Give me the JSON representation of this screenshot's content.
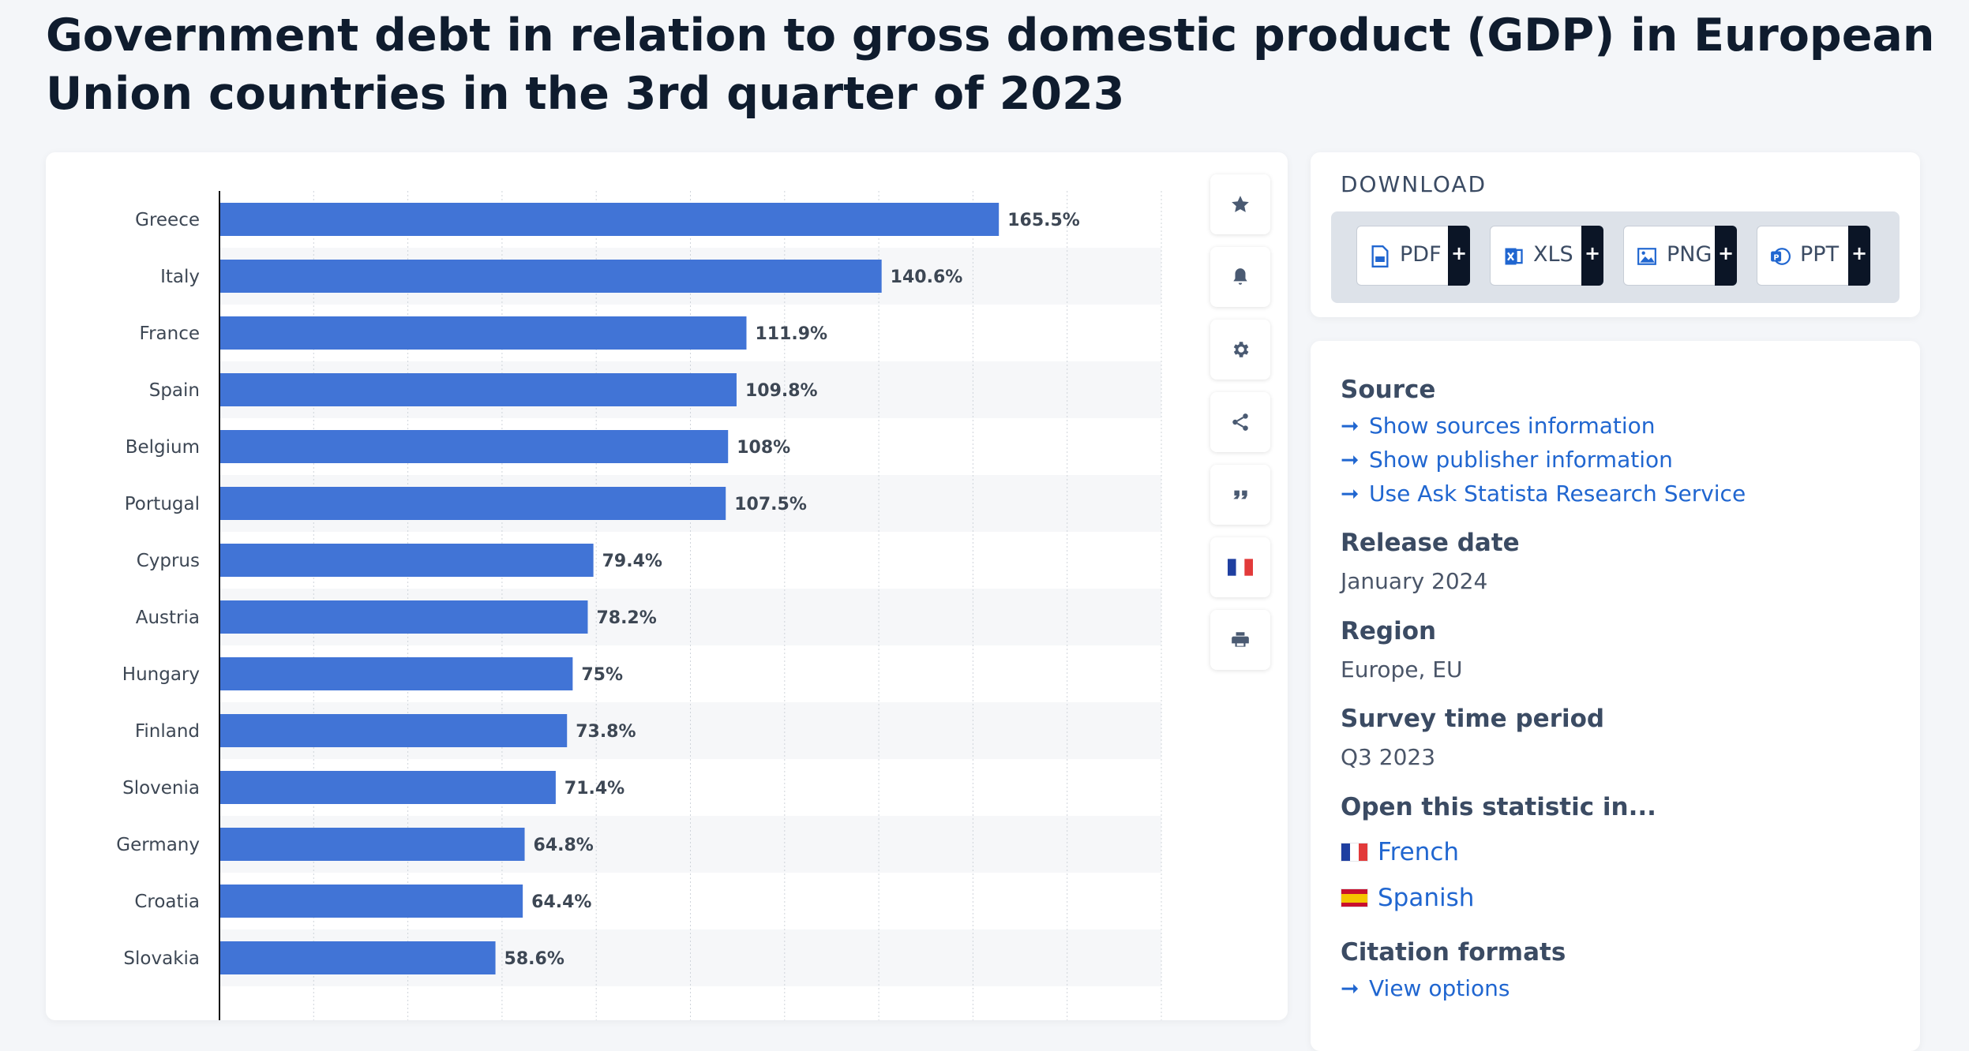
{
  "page": {
    "title": "Government debt in relation to gross domestic product (GDP) in European Union countries in the 3rd quarter of 2023"
  },
  "chart_data": {
    "type": "bar",
    "orientation": "horizontal",
    "title": "Government debt in relation to gross domestic product (GDP) in European Union countries in the 3rd quarter of 2023",
    "xlabel": "",
    "ylabel": "",
    "xlim": [
      0,
      200
    ],
    "grid": true,
    "categories": [
      "Greece",
      "Italy",
      "France",
      "Spain",
      "Belgium",
      "Portugal",
      "Cyprus",
      "Austria",
      "Hungary",
      "Finland",
      "Slovenia",
      "Germany",
      "Croatia",
      "Slovakia"
    ],
    "values": [
      165.5,
      140.6,
      111.9,
      109.8,
      108,
      107.5,
      79.4,
      78.2,
      75,
      73.8,
      71.4,
      64.8,
      64.4,
      58.6
    ],
    "labels": [
      "165.5%",
      "140.6%",
      "111.9%",
      "109.8%",
      "108%",
      "107.5%",
      "79.4%",
      "78.2%",
      "75%",
      "73.8%",
      "71.4%",
      "64.8%",
      "64.4%",
      "58.6%"
    ],
    "unit": "%",
    "bar_color": "#4174d6"
  },
  "toolbar": {
    "items": [
      {
        "name": "favorite",
        "icon": "star-icon"
      },
      {
        "name": "notification",
        "icon": "bell-icon"
      },
      {
        "name": "settings",
        "icon": "gear-icon"
      },
      {
        "name": "share",
        "icon": "share-icon"
      },
      {
        "name": "cite",
        "icon": "quote-icon"
      },
      {
        "name": "language",
        "icon": "french-flag-icon"
      },
      {
        "name": "print",
        "icon": "print-icon"
      }
    ]
  },
  "download": {
    "heading": "DOWNLOAD",
    "buttons": [
      {
        "label": "PDF",
        "plus": "+",
        "icon": "pdf-file-icon"
      },
      {
        "label": "XLS",
        "plus": "+",
        "icon": "xls-file-icon"
      },
      {
        "label": "PNG",
        "plus": "+",
        "icon": "png-image-icon"
      },
      {
        "label": "PPT",
        "plus": "+",
        "icon": "ppt-file-icon"
      }
    ]
  },
  "info": {
    "source_heading": "Source",
    "source_links": [
      "Show sources information",
      "Show publisher information",
      "Use Ask Statista Research Service"
    ],
    "link_arrow": "➞",
    "release_heading": "Release date",
    "release_value": "January 2024",
    "region_heading": "Region",
    "region_value": "Europe, EU",
    "survey_heading": "Survey time period",
    "survey_value": "Q3 2023",
    "open_heading": "Open this statistic in...",
    "languages": [
      "French",
      "Spanish"
    ],
    "citation_heading": "Citation formats",
    "citation_link": "View options"
  },
  "colors": {
    "bar": "#4174d6",
    "link": "#2066d0",
    "title": "#0f1c2e"
  }
}
